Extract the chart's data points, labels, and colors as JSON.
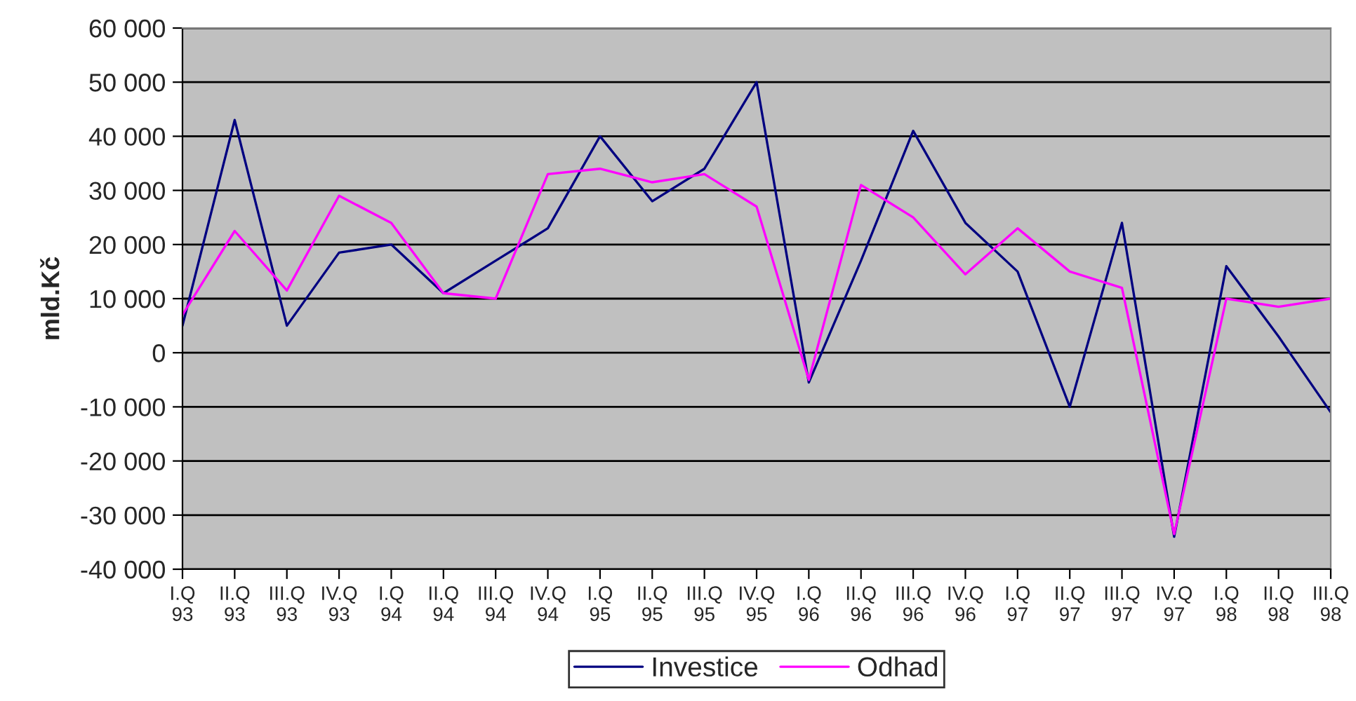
{
  "chart_data": {
    "type": "line",
    "ylabel": "mld.Kč",
    "categories": [
      "I.Q\n93",
      "II.Q\n93",
      "III.Q\n93",
      "IV.Q\n93",
      "I.Q\n94",
      "II.Q\n94",
      "III.Q\n94",
      "IV.Q\n94",
      "I.Q\n95",
      "II.Q\n95",
      "III.Q\n95",
      "IV.Q\n95",
      "I.Q\n96",
      "II.Q\n96",
      "III.Q\n96",
      "IV.Q\n96",
      "I.Q\n97",
      "II.Q\n97",
      "III.Q\n97",
      "IV.Q\n97",
      "I.Q\n98",
      "II.Q\n98",
      "III.Q\n98"
    ],
    "series": [
      {
        "name": "Investice",
        "color": "#000080",
        "values": [
          5000,
          43000,
          5000,
          18500,
          20000,
          11000,
          17000,
          23000,
          40000,
          28000,
          34000,
          50000,
          -5500,
          17000,
          41000,
          24000,
          15000,
          -10000,
          24000,
          -34000,
          16000,
          3000,
          -11000
        ]
      },
      {
        "name": "Odhad",
        "color": "#ff00ff",
        "values": [
          7000,
          22500,
          11500,
          29000,
          24000,
          11000,
          10000,
          33000,
          34000,
          31500,
          33000,
          27000,
          -5000,
          31000,
          25000,
          14500,
          23000,
          15000,
          12000,
          -33500,
          10000,
          8500,
          10000
        ]
      }
    ],
    "ylim": [
      -40000,
      60000
    ],
    "yticks": [
      {
        "value": -40000,
        "label": "-40 000"
      },
      {
        "value": -30000,
        "label": "-30 000"
      },
      {
        "value": -20000,
        "label": "-20 000"
      },
      {
        "value": -10000,
        "label": "-10 000"
      },
      0,
      {
        "value": 10000,
        "label": "10 000"
      },
      {
        "value": 20000,
        "label": "20 000"
      },
      {
        "value": 30000,
        "label": "30 000"
      },
      {
        "value": 40000,
        "label": "40 000"
      },
      {
        "value": 50000,
        "label": "50 000"
      },
      {
        "value": 60000,
        "label": "60 000"
      }
    ],
    "grid": "y",
    "legend": "bottom",
    "marker": "none",
    "line_style": "solid"
  }
}
